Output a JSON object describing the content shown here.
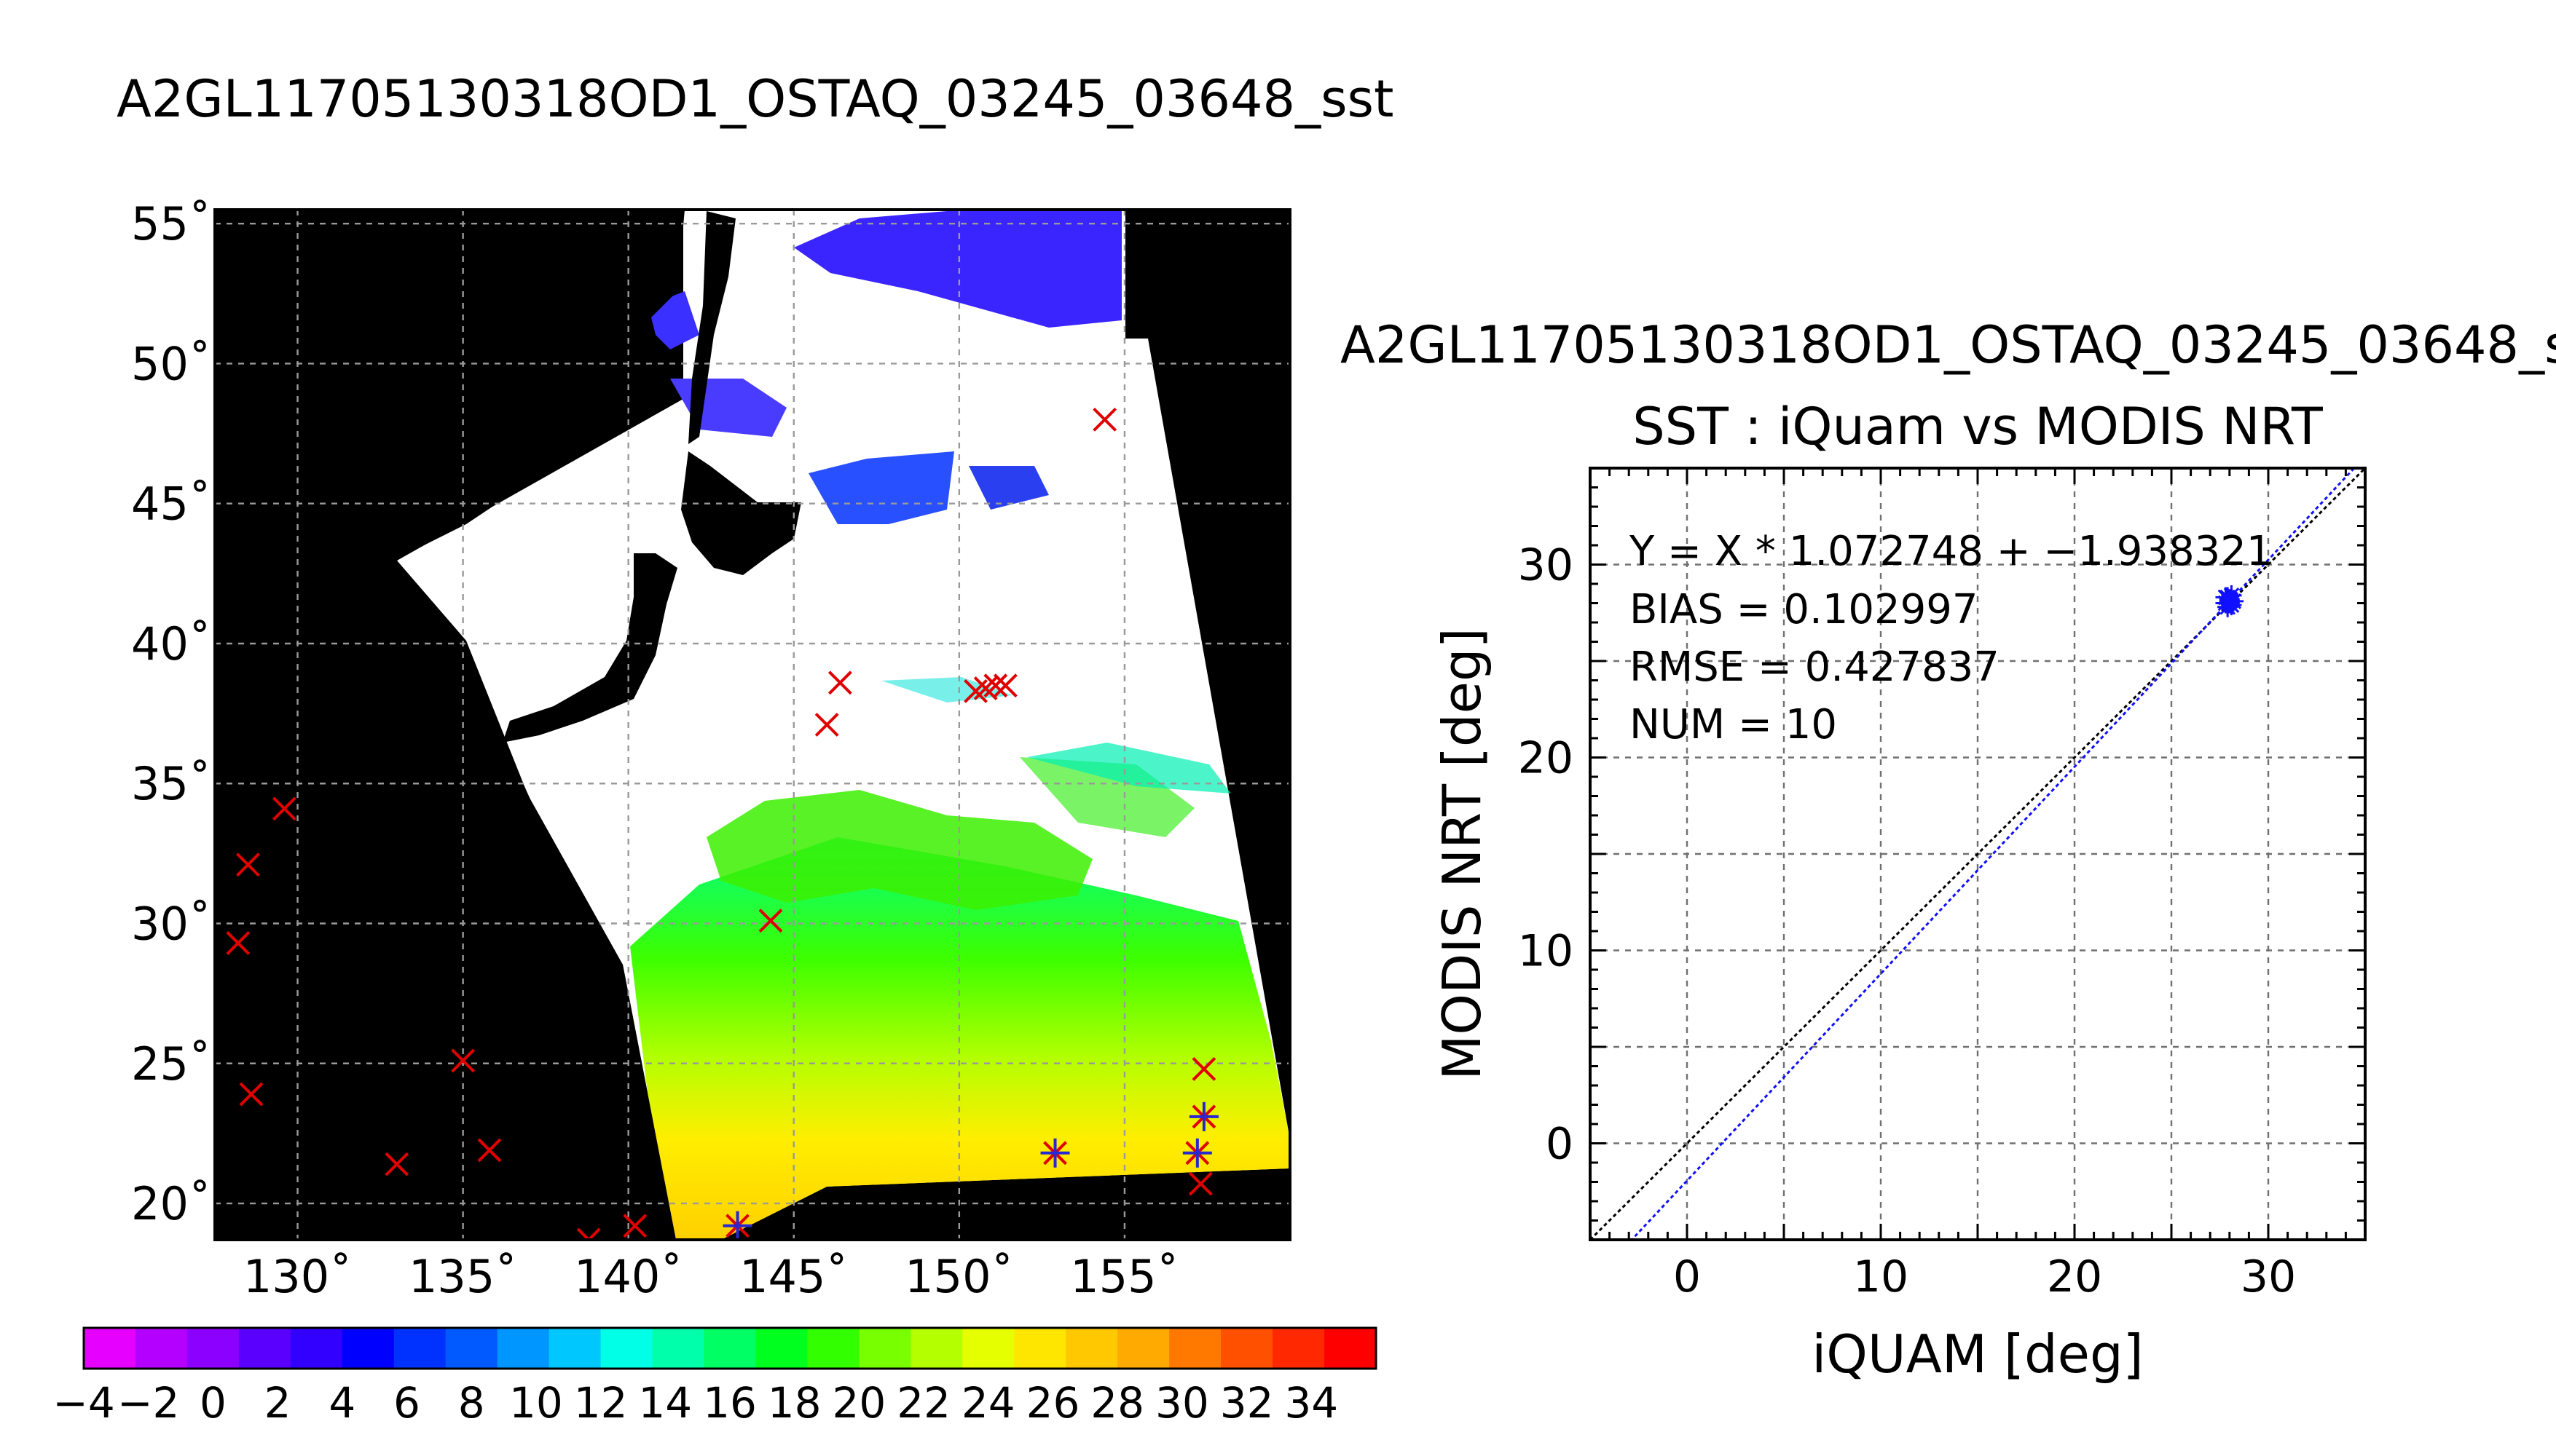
{
  "map": {
    "title": "A2GL11705130318OD1_OSTAQ_03245_03648_sst",
    "lon_ticks": [
      "130˚",
      "135˚",
      "140˚",
      "145˚",
      "150˚",
      "155˚"
    ],
    "lat_ticks": [
      "55˚",
      "50˚",
      "45˚",
      "40˚",
      "35˚",
      "30˚",
      "25˚",
      "20˚"
    ],
    "colorbar": {
      "labels": [
        "−4",
        "−2",
        "0",
        "2",
        "4",
        "6",
        "8",
        "10",
        "12",
        "14",
        "16",
        "18",
        "20",
        "22",
        "24",
        "26",
        "28",
        "30",
        "32",
        "34"
      ],
      "min": -4,
      "max": 36,
      "colors": [
        "#e600ff",
        "#b400ff",
        "#8c00ff",
        "#5a00ff",
        "#3200ff",
        "#0000ff",
        "#0032ff",
        "#005aff",
        "#0096ff",
        "#00c8ff",
        "#00ffe6",
        "#00ffaa",
        "#00ff64",
        "#00ff1e",
        "#32ff00",
        "#78ff00",
        "#b4ff00",
        "#e6ff00",
        "#ffe600",
        "#ffc800",
        "#ffaa00",
        "#ff7800",
        "#ff5000",
        "#ff2800",
        "#ff0000"
      ]
    },
    "red_markers": [
      [
        129.6,
        34.1
      ],
      [
        128.5,
        32.1
      ],
      [
        128.2,
        29.3
      ],
      [
        128.6,
        23.9
      ],
      [
        135.0,
        25.1
      ],
      [
        133.0,
        21.4
      ],
      [
        135.8,
        21.9
      ],
      [
        138.8,
        18.7
      ],
      [
        140.2,
        19.2
      ],
      [
        143.3,
        19.2
      ],
      [
        144.3,
        30.1
      ],
      [
        146.0,
        37.1
      ],
      [
        146.4,
        38.6
      ],
      [
        150.5,
        38.3
      ],
      [
        150.8,
        38.4
      ],
      [
        151.1,
        38.5
      ],
      [
        151.4,
        38.5
      ],
      [
        154.4,
        48.0
      ],
      [
        152.9,
        21.8
      ],
      [
        157.4,
        24.8
      ],
      [
        157.4,
        23.1
      ],
      [
        157.2,
        21.8
      ],
      [
        157.3,
        20.7
      ]
    ],
    "blue_markers": [
      [
        143.3,
        19.2
      ],
      [
        152.9,
        21.8
      ],
      [
        157.4,
        23.1
      ],
      [
        157.2,
        21.8
      ]
    ]
  },
  "scatter": {
    "title_top": "A2GL11705130318OD1_OSTAQ_03245_03648_s",
    "stats": [
      "Y = X * 1.072748 + −1.938321",
      "BIAS = 0.102997",
      "RMSE = 0.427837",
      "NUM = 10"
    ]
  },
  "chart_data": {
    "type": "scatter",
    "title": "SST : iQuam vs MODIS NRT",
    "xlabel": "iQUAM [deg]",
    "ylabel": "MODIS NRT [deg]",
    "xlim": [
      -5,
      35
    ],
    "ylim": [
      -5,
      35
    ],
    "x_ticks": [
      "0",
      "10",
      "20",
      "30"
    ],
    "y_ticks": [
      "0",
      "10",
      "20",
      "30"
    ],
    "grid": true,
    "fit": {
      "slope": 1.072748,
      "intercept": -1.938321
    },
    "points": [
      [
        27.8,
        28.0
      ],
      [
        27.9,
        28.3
      ],
      [
        28.0,
        28.1
      ],
      [
        28.1,
        28.4
      ],
      [
        27.9,
        27.8
      ],
      [
        28.0,
        28.2
      ],
      [
        28.2,
        28.1
      ],
      [
        27.8,
        28.3
      ],
      [
        28.1,
        27.9
      ],
      [
        28.0,
        28.0
      ]
    ]
  }
}
